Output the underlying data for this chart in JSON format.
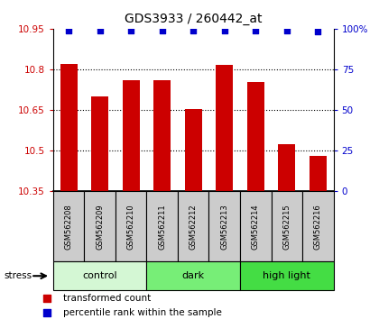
{
  "title": "GDS3933 / 260442_at",
  "samples": [
    "GSM562208",
    "GSM562209",
    "GSM562210",
    "GSM562211",
    "GSM562212",
    "GSM562213",
    "GSM562214",
    "GSM562215",
    "GSM562216"
  ],
  "bar_values": [
    10.82,
    10.7,
    10.76,
    10.76,
    10.655,
    10.815,
    10.755,
    10.525,
    10.48
  ],
  "percentile_values": [
    99,
    99,
    99,
    99,
    99,
    99,
    99,
    99,
    98
  ],
  "bar_color": "#cc0000",
  "percentile_color": "#0000cc",
  "ylim": [
    10.35,
    10.95
  ],
  "y2lim": [
    0,
    100
  ],
  "yticks": [
    10.35,
    10.5,
    10.65,
    10.8,
    10.95
  ],
  "ytick_labels": [
    "10.35",
    "10.5",
    "10.65",
    "10.8",
    "10.95"
  ],
  "y2ticks": [
    0,
    25,
    50,
    75,
    100
  ],
  "y2tick_labels": [
    "0",
    "25",
    "50",
    "75",
    "100%"
  ],
  "grid_lines": [
    10.5,
    10.65,
    10.8
  ],
  "groups": [
    {
      "label": "control",
      "start": 0,
      "end": 3,
      "color": "#d4f7d4"
    },
    {
      "label": "dark",
      "start": 3,
      "end": 6,
      "color": "#77ee77"
    },
    {
      "label": "high light",
      "start": 6,
      "end": 9,
      "color": "#44dd44"
    }
  ],
  "stress_label": "stress",
  "legend_items": [
    {
      "label": "transformed count",
      "color": "#cc0000"
    },
    {
      "label": "percentile rank within the sample",
      "color": "#0000cc"
    }
  ],
  "bar_width": 0.55,
  "bg_color": "#ffffff",
  "plot_bg_color": "#ffffff",
  "tick_color_left": "#cc0000",
  "tick_color_right": "#0000cc",
  "sample_box_color": "#cccccc",
  "title_fontsize": 10
}
